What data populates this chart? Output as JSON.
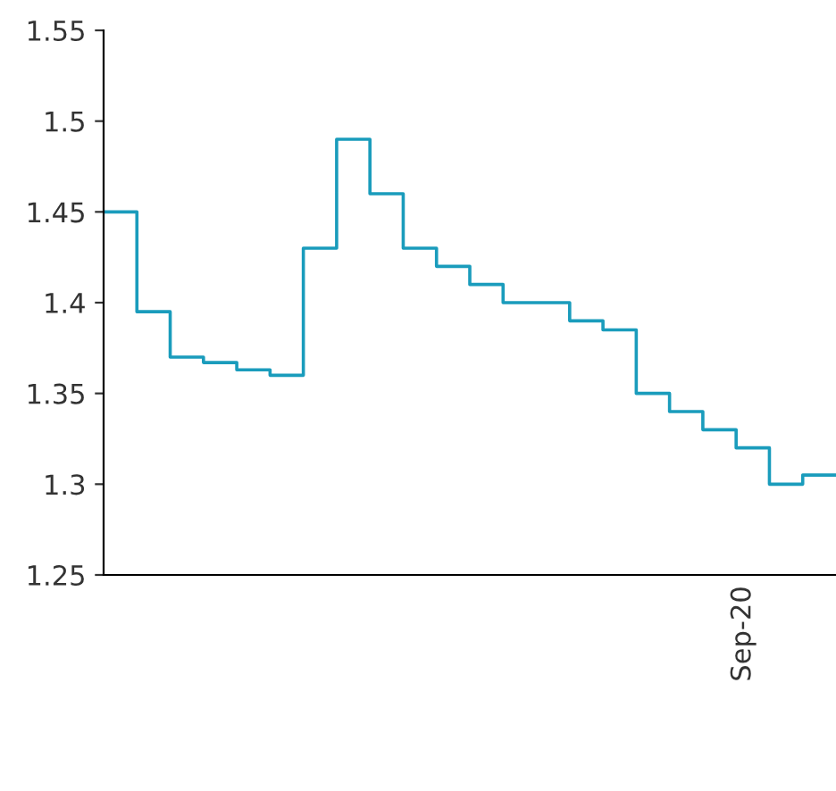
{
  "chart_data": {
    "type": "step",
    "categories": [
      null,
      null,
      null,
      null,
      null,
      null,
      null,
      null,
      null,
      null,
      null,
      null,
      null,
      null,
      null,
      null,
      null,
      null,
      null,
      null,
      null,
      null,
      null
    ],
    "series": [
      {
        "color": "#1a9cbc",
        "values": [
          1.45,
          1.395,
          1.37,
          1.367,
          1.363,
          1.36,
          1.43,
          1.49,
          1.46,
          1.43,
          1.42,
          1.41,
          1.4,
          1.4,
          1.39,
          1.385,
          1.35,
          1.34,
          1.33,
          1.32,
          1.3,
          1.305,
          1.305
        ]
      }
    ],
    "annotations": [
      "Sep-20"
    ],
    "ylim": [
      1.25,
      1.55
    ],
    "yticks": [
      1.25,
      1.3,
      1.35,
      1.4,
      1.45,
      1.5,
      1.55
    ],
    "grid": false
  }
}
